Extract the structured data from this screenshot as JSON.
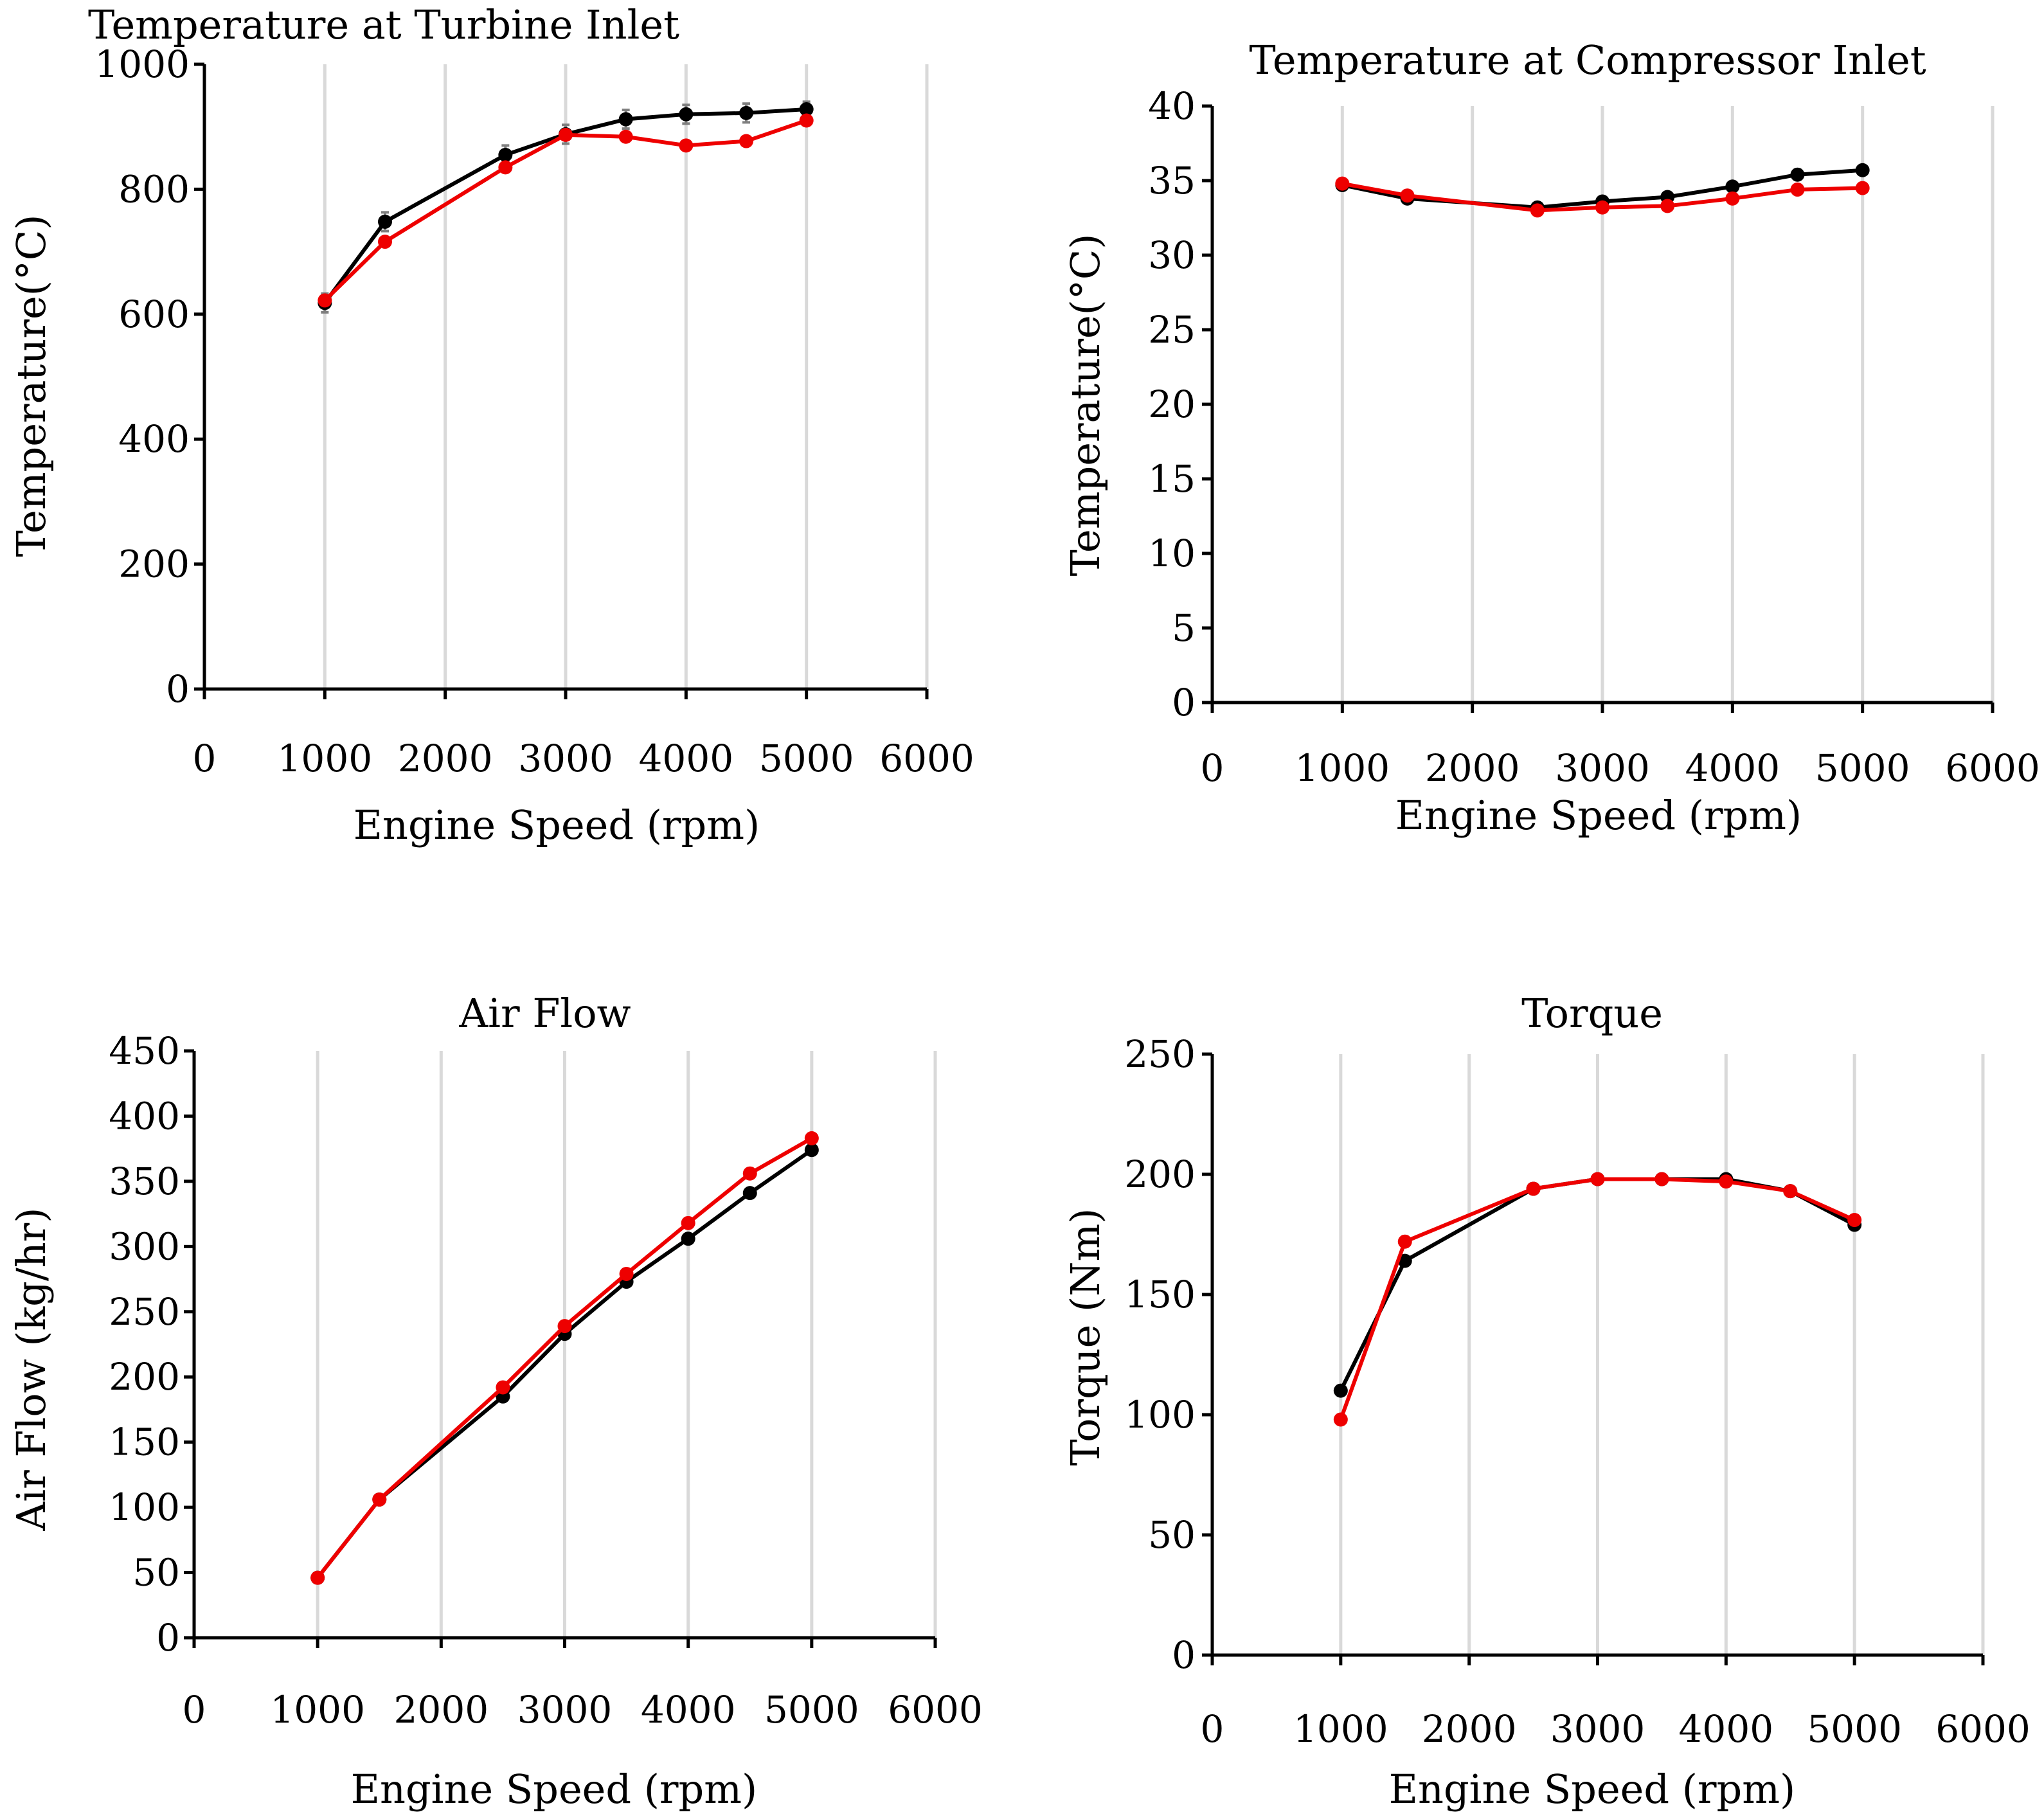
{
  "colors": {
    "series_black": "#000000",
    "series_red": "#ee0000",
    "errorbar": "#7f7f7f",
    "grid": "#d9d9d9"
  },
  "chart_data": [
    {
      "type": "line",
      "title": "Temperature at Turbine Inlet",
      "xlabel": "Engine Speed (rpm)",
      "ylabel": "Temperature(°C)",
      "xlim": [
        0,
        6000
      ],
      "ylim": [
        0,
        1000
      ],
      "xticks": [
        0,
        1000,
        2000,
        3000,
        4000,
        5000,
        6000
      ],
      "yticks": [
        0,
        200,
        400,
        600,
        800,
        1000
      ],
      "grid": "vertical",
      "x": [
        1000,
        1500,
        2500,
        3000,
        3500,
        4000,
        4500,
        5000
      ],
      "series": [
        {
          "name": "black",
          "color": "#000000",
          "values": [
            618,
            748,
            855,
            888,
            912,
            920,
            922,
            928
          ],
          "errors": [
            15,
            15,
            15,
            15,
            15,
            15,
            15,
            12
          ]
        },
        {
          "name": "red",
          "color": "#ee0000",
          "values": [
            622,
            716,
            835,
            887,
            884,
            870,
            877,
            910
          ]
        }
      ]
    },
    {
      "type": "line",
      "title": "Temperature at Compressor Inlet",
      "xlabel": "Engine Speed (rpm)",
      "ylabel": "Temperature(°C)",
      "xlim": [
        0,
        6000
      ],
      "ylim": [
        0,
        40
      ],
      "xticks": [
        0,
        1000,
        2000,
        3000,
        4000,
        5000,
        6000
      ],
      "yticks": [
        0,
        5,
        10,
        15,
        20,
        25,
        30,
        35,
        40
      ],
      "grid": "vertical",
      "x": [
        1000,
        1500,
        2500,
        3000,
        3500,
        4000,
        4500,
        5000
      ],
      "series": [
        {
          "name": "black",
          "color": "#000000",
          "values": [
            34.7,
            33.8,
            33.2,
            33.6,
            33.9,
            34.6,
            35.4,
            35.7
          ]
        },
        {
          "name": "red",
          "color": "#ee0000",
          "values": [
            34.8,
            34.0,
            33.0,
            33.2,
            33.3,
            33.8,
            34.4,
            34.5
          ]
        }
      ]
    },
    {
      "type": "line",
      "title": "Air Flow",
      "xlabel": "Engine Speed (rpm)",
      "ylabel": "Air Flow (kg/hr)",
      "xlim": [
        0,
        6000
      ],
      "ylim": [
        0,
        450
      ],
      "xticks": [
        0,
        1000,
        2000,
        3000,
        4000,
        5000,
        6000
      ],
      "yticks": [
        0,
        50,
        100,
        150,
        200,
        250,
        300,
        350,
        400,
        450
      ],
      "grid": "vertical",
      "x": [
        1000,
        1500,
        2500,
        3000,
        3500,
        4000,
        4500,
        5000
      ],
      "series": [
        {
          "name": "black",
          "color": "#000000",
          "values": [
            46,
            106,
            185,
            233,
            273,
            306,
            341,
            374
          ]
        },
        {
          "name": "red",
          "color": "#ee0000",
          "values": [
            46,
            106,
            192,
            239,
            279,
            318,
            356,
            383
          ]
        }
      ]
    },
    {
      "type": "line",
      "title": "Torque",
      "xlabel": "Engine Speed (rpm)",
      "ylabel": "Torque (Nm)",
      "xlim": [
        0,
        6000
      ],
      "ylim": [
        0,
        250
      ],
      "xticks": [
        0,
        1000,
        2000,
        3000,
        4000,
        5000,
        6000
      ],
      "yticks": [
        0,
        50,
        100,
        150,
        200,
        250
      ],
      "grid": "vertical",
      "x": [
        1000,
        1500,
        2500,
        3000,
        3500,
        4000,
        4500,
        5000
      ],
      "series": [
        {
          "name": "black",
          "color": "#000000",
          "values": [
            110,
            164,
            194,
            198,
            198,
            198,
            193,
            179
          ]
        },
        {
          "name": "red",
          "color": "#ee0000",
          "values": [
            98,
            172,
            194,
            198,
            198,
            197,
            193,
            181
          ]
        }
      ]
    }
  ]
}
